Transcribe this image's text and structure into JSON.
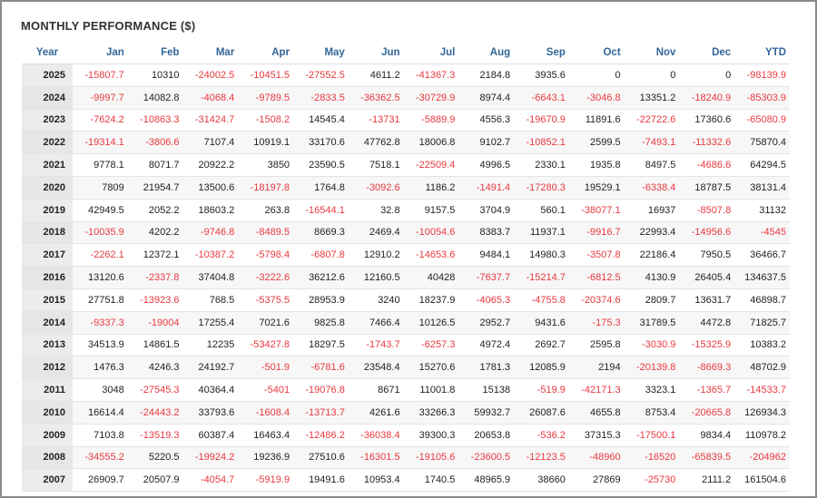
{
  "header": {
    "title": "MONTHLY PERFORMANCE ($)"
  },
  "table": {
    "columns": [
      "Year",
      "Jan",
      "Feb",
      "Mar",
      "Apr",
      "May",
      "Jun",
      "Jul",
      "Aug",
      "Sep",
      "Oct",
      "Nov",
      "Dec",
      "YTD"
    ],
    "rows": [
      [
        2025,
        -15807.7,
        10310,
        -24002.5,
        -10451.5,
        -27552.5,
        4611.2,
        -41367.3,
        2184.8,
        3935.6,
        0,
        0,
        0,
        -98139.9
      ],
      [
        2024,
        -9997.7,
        14082.8,
        -4068.4,
        -9789.5,
        -2833.5,
        -36362.5,
        -30729.9,
        8974.4,
        -6643.1,
        -3046.8,
        13351.2,
        -18240.9,
        -85303.9
      ],
      [
        2023,
        -7624.2,
        -10863.3,
        -31424.7,
        -1508.2,
        14545.4,
        -13731,
        -5889.9,
        4556.3,
        -19670.9,
        11891.6,
        -22722.6,
        17360.6,
        -65080.9
      ],
      [
        2022,
        -19314.1,
        -3806.6,
        7107.4,
        10919.1,
        33170.6,
        47762.8,
        18006.8,
        9102.7,
        -10852.1,
        2599.5,
        -7493.1,
        -11332.6,
        75870.4
      ],
      [
        2021,
        9778.1,
        8071.7,
        20922.2,
        3850,
        23590.5,
        7518.1,
        -22509.4,
        4996.5,
        2330.1,
        1935.8,
        8497.5,
        -4686.6,
        64294.5
      ],
      [
        2020,
        7809,
        21954.7,
        13500.6,
        -18197.8,
        1764.8,
        -3092.6,
        1186.2,
        -1491.4,
        -17280.3,
        19529.1,
        -6338.4,
        18787.5,
        38131.4
      ],
      [
        2019,
        42949.5,
        2052.2,
        18603.2,
        263.8,
        -16544.1,
        32.8,
        9157.5,
        3704.9,
        560.1,
        -38077.1,
        16937,
        -8507.8,
        31132
      ],
      [
        2018,
        -10035.9,
        4202.2,
        -9746.8,
        -8489.5,
        8669.3,
        2469.4,
        -10054.6,
        8383.7,
        11937.1,
        -9916.7,
        22993.4,
        -14956.6,
        -4545
      ],
      [
        2017,
        -2262.1,
        12372.1,
        -10387.2,
        -5798.4,
        -6807.8,
        12910.2,
        -14653.6,
        9484.1,
        14980.3,
        -3507.8,
        22186.4,
        7950.5,
        36466.7
      ],
      [
        2016,
        13120.6,
        -2337.8,
        37404.8,
        -3222.6,
        36212.6,
        12160.5,
        40428,
        -7637.7,
        -15214.7,
        -6812.5,
        4130.9,
        26405.4,
        134637.5
      ],
      [
        2015,
        27751.8,
        -13923.6,
        768.5,
        -5375.5,
        28953.9,
        3240,
        18237.9,
        -4065.3,
        -4755.8,
        -20374.6,
        2809.7,
        13631.7,
        46898.7
      ],
      [
        2014,
        -9337.3,
        -19004,
        17255.4,
        7021.6,
        9825.8,
        7466.4,
        10126.5,
        2952.7,
        9431.6,
        -175.3,
        31789.5,
        4472.8,
        71825.7
      ],
      [
        2013,
        34513.9,
        14861.5,
        12235,
        -53427.8,
        18297.5,
        -1743.7,
        -6257.3,
        4972.4,
        2692.7,
        2595.8,
        -3030.9,
        -15325.9,
        10383.2
      ],
      [
        2012,
        1476.3,
        4246.3,
        24192.7,
        -501.9,
        -6781.6,
        23548.4,
        15270.6,
        1781.3,
        12085.9,
        2194,
        -20139.8,
        -8669.3,
        48702.9
      ],
      [
        2011,
        3048,
        -27545.3,
        40364.4,
        -5401,
        -19076.8,
        8671,
        11001.8,
        15138,
        -519.9,
        -42171.3,
        3323.1,
        -1365.7,
        -14533.7
      ],
      [
        2010,
        16614.4,
        -24443.2,
        33793.6,
        -1608.4,
        -13713.7,
        4261.6,
        33266.3,
        59932.7,
        26087.6,
        4655.8,
        8753.4,
        -20665.8,
        126934.3
      ],
      [
        2009,
        7103.8,
        -13519.3,
        60387.4,
        16463.4,
        -12486.2,
        -36038.4,
        39300.3,
        20653.8,
        -536.2,
        37315.3,
        -17500.1,
        9834.4,
        110978.2
      ],
      [
        2008,
        -34555.2,
        5220.5,
        -19924.2,
        19236.9,
        27510.6,
        -16301.5,
        -19105.6,
        -23600.5,
        -12123.5,
        -48960,
        -16520,
        -65839.5,
        -204962
      ],
      [
        2007,
        26909.7,
        20507.9,
        -4054.7,
        -5919.9,
        19491.6,
        10953.4,
        1740.5,
        48965.9,
        38660,
        27869,
        -25730,
        2111.2,
        161504.6
      ]
    ]
  }
}
